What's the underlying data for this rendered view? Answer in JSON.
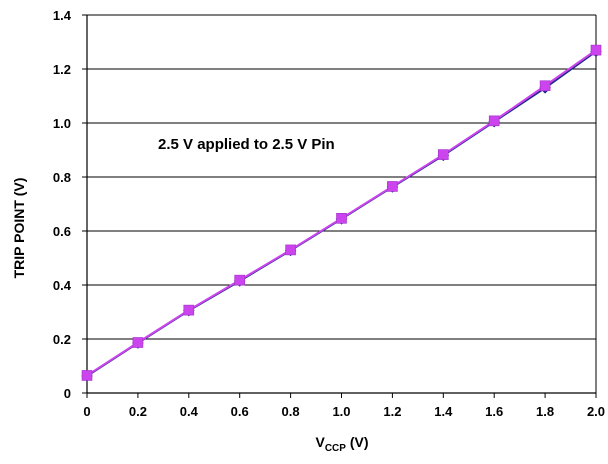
{
  "chart_data": {
    "type": "line",
    "title": "",
    "annotation": "2.5 V applied to 2.5 V Pin",
    "xlabel": {
      "main": "V",
      "sub": "CCP",
      "suffix": " (V)"
    },
    "ylabel": "TRIP POINT (V)",
    "xlim": [
      0,
      2.0
    ],
    "ylim": [
      0,
      1.4
    ],
    "x_ticks": [
      0,
      0.2,
      0.4,
      0.6,
      0.8,
      1.0,
      1.2,
      1.4,
      1.6,
      1.8,
      2.0
    ],
    "x_tick_labels": [
      "0",
      "0.2",
      "0.4",
      "0.6",
      "0.8",
      "1.0",
      "1.2",
      "1.4",
      "1.6",
      "1.8",
      "2.0"
    ],
    "y_ticks": [
      0,
      0.2,
      0.4,
      0.6,
      0.8,
      1.0,
      1.2,
      1.4
    ],
    "y_tick_labels": [
      "0",
      "0.2",
      "0.4",
      "0.6",
      "0.8",
      "1.0",
      "1.2",
      "1.4"
    ],
    "grid": "horizontal",
    "legend": "none",
    "series": [
      {
        "marker": "diamond",
        "color": "#1f2a8c",
        "x": [
          0,
          0.2,
          0.4,
          0.6,
          0.8,
          1.0,
          1.2,
          1.4,
          1.6,
          1.8,
          2.0
        ],
        "y": [
          0.063,
          0.185,
          0.305,
          0.415,
          0.528,
          0.645,
          0.763,
          0.88,
          1.005,
          1.13,
          1.265
        ]
      },
      {
        "marker": "square",
        "color": "#cc44ee",
        "x": [
          0,
          0.2,
          0.4,
          0.6,
          0.8,
          1.0,
          1.2,
          1.4,
          1.6,
          1.8,
          2.0
        ],
        "y": [
          0.065,
          0.187,
          0.307,
          0.418,
          0.53,
          0.647,
          0.765,
          0.883,
          1.008,
          1.138,
          1.27
        ]
      }
    ]
  }
}
